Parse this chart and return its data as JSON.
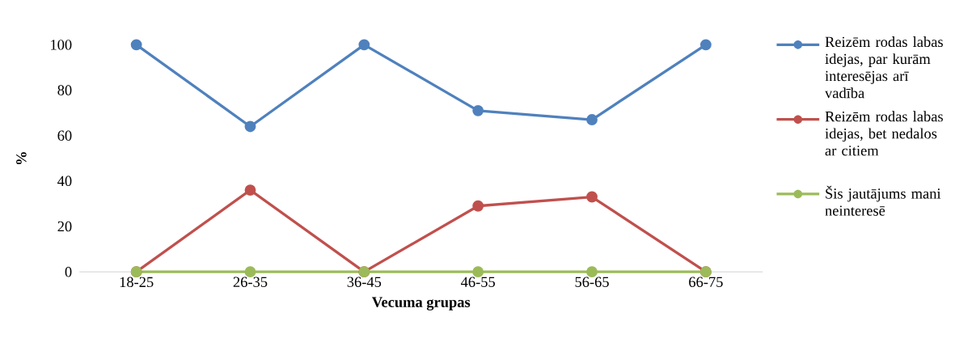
{
  "chart_data": {
    "type": "line",
    "xlabel": "Vecuma grupas",
    "ylabel": "%",
    "categories": [
      "18-25",
      "26-35",
      "36-45",
      "46-55",
      "56-65",
      "66-75"
    ],
    "series": [
      {
        "name": "Reizēm rodas labas idejas, par kurām interesējas arī vadība",
        "color": "#4f81bd",
        "values": [
          100,
          64,
          100,
          71,
          67,
          100
        ]
      },
      {
        "name": "Reizēm rodas labas idejas, bet nedalos ar citiem",
        "color": "#c0504d",
        "values": [
          0,
          36,
          0,
          29,
          33,
          0
        ]
      },
      {
        "name": "Šis jautājums mani neinteresē",
        "color": "#9bbb59",
        "values": [
          0,
          0,
          0,
          0,
          0,
          0
        ]
      }
    ],
    "ylim": [
      0,
      100
    ],
    "yticks": [
      0,
      20,
      40,
      60,
      80,
      100
    ],
    "grid": false,
    "legend": "right",
    "marker": "circle",
    "line_style": "solid"
  }
}
